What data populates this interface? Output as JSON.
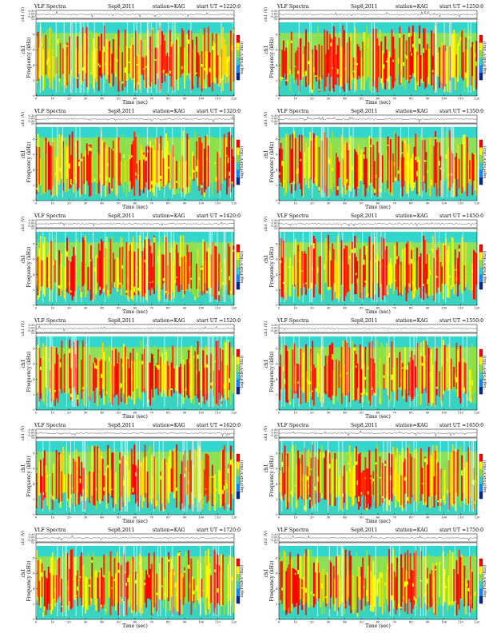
{
  "figure": {
    "common": {
      "title": "VLF Spectra",
      "date": "Sep8,2011",
      "station": "station=KAG",
      "start_prefix": "start  UT =",
      "waveform_ylabel": "ch1 (V)",
      "spectrogram_ylabel_top": "ch1",
      "spectrogram_ylabel": "Frequency  (kHz)",
      "xlabel": "Time  (sec)",
      "colorbar_label": "log(PSD(V²/Hz))"
    },
    "panels": [
      {
        "start": "1220:0"
      },
      {
        "start": "1250:0"
      },
      {
        "start": "1320:0"
      },
      {
        "start": "1350:0"
      },
      {
        "start": "1420:0"
      },
      {
        "start": "1450:0"
      },
      {
        "start": "1520:0"
      },
      {
        "start": "1550:0"
      },
      {
        "start": "1620:0"
      },
      {
        "start": "1650:0"
      },
      {
        "start": "1720:0"
      },
      {
        "start": "1750:0"
      }
    ]
  },
  "chart_data": {
    "type": "heatmap",
    "x_axis": {
      "label": "Time  (sec)",
      "range": [
        0,
        120
      ],
      "ticks": [
        0,
        10,
        20,
        30,
        40,
        50,
        60,
        70,
        80,
        90,
        100,
        110,
        120
      ]
    },
    "y_axis": {
      "label": "Frequency  (kHz)",
      "range": [
        0,
        10
      ],
      "ticks": [
        0,
        2,
        4,
        6,
        8,
        10
      ]
    },
    "waveform_axis": {
      "label": "ch1 (V)",
      "ticks": [
        0.3,
        0.0,
        -0.3
      ]
    },
    "colorbar": {
      "label": "log(PSD(V²/Hz))",
      "colors": [
        "#002a8c",
        "#0a8cff",
        "#30d2c8",
        "#8ce23c",
        "#ffff00",
        "#ff0000"
      ]
    },
    "grid": false
  }
}
